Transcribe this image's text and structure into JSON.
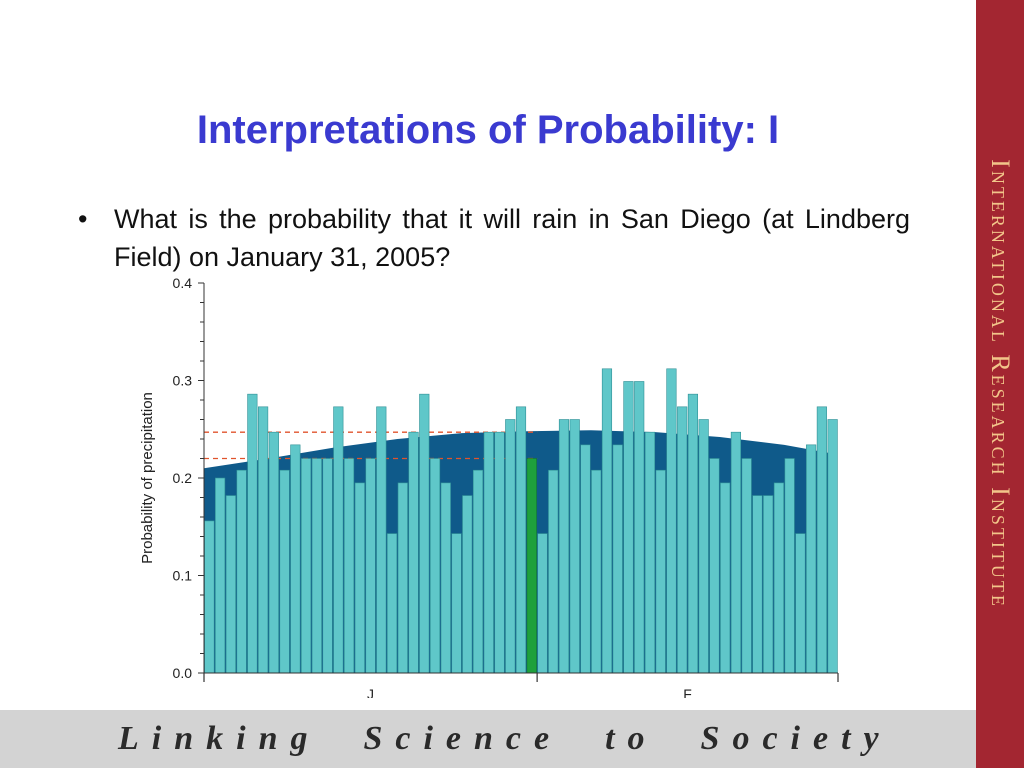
{
  "slide": {
    "title": "Interpretations of Probability: I",
    "bullet_marker": "•",
    "bullet_text": "What is the probability that it will rain in San Diego (at Lindberg Field) on January 31, 2005?",
    "side_banner": "International Research Institute",
    "footer": "Linking  Science  to  Society"
  },
  "colors": {
    "title": "#3a3ad0",
    "banner_bg": "#a32631",
    "banner_text": "#f2c58a",
    "footer_bg": "#d3d3d3",
    "bar_fill": "#5fc7c9",
    "bar_stroke": "#2f8f95",
    "highlight_bar": "#1ea03c",
    "climatology_area": "#0f5a8a",
    "reference_line": "#e0532c"
  },
  "chart_data": {
    "type": "bar",
    "title": "",
    "xlabel": "",
    "ylabel": "Probability of precipitation",
    "ylim": [
      0,
      0.4
    ],
    "yticks": [
      "0.0",
      "0.1",
      "0.2",
      "0.3",
      "0.4"
    ],
    "month_labels": [
      "J",
      "F"
    ],
    "month_start_index": [
      0,
      31
    ],
    "highlight_index": 30,
    "highlight_note": "January 31",
    "bar_values": [
      0.156,
      0.2,
      0.182,
      0.208,
      0.286,
      0.273,
      0.247,
      0.208,
      0.234,
      0.22,
      0.22,
      0.22,
      0.273,
      0.22,
      0.195,
      0.22,
      0.273,
      0.143,
      0.195,
      0.247,
      0.286,
      0.22,
      0.195,
      0.143,
      0.182,
      0.208,
      0.247,
      0.247,
      0.26,
      0.273,
      0.22,
      0.143,
      0.208,
      0.26,
      0.26,
      0.234,
      0.208,
      0.312,
      0.234,
      0.299,
      0.299,
      0.247,
      0.208,
      0.312,
      0.273,
      0.286,
      0.26,
      0.22,
      0.195,
      0.247,
      0.22,
      0.182,
      0.182,
      0.195,
      0.22,
      0.143,
      0.234,
      0.273,
      0.26
    ],
    "climatology_curve": {
      "day": [
        0,
        6,
        12,
        18,
        24,
        30,
        36,
        42,
        48,
        54,
        58.5
      ],
      "value": [
        0.21,
        0.22,
        0.231,
        0.24,
        0.246,
        0.248,
        0.249,
        0.247,
        0.242,
        0.234,
        0.225
      ]
    },
    "reference_lines": [
      0.247,
      0.22
    ]
  }
}
